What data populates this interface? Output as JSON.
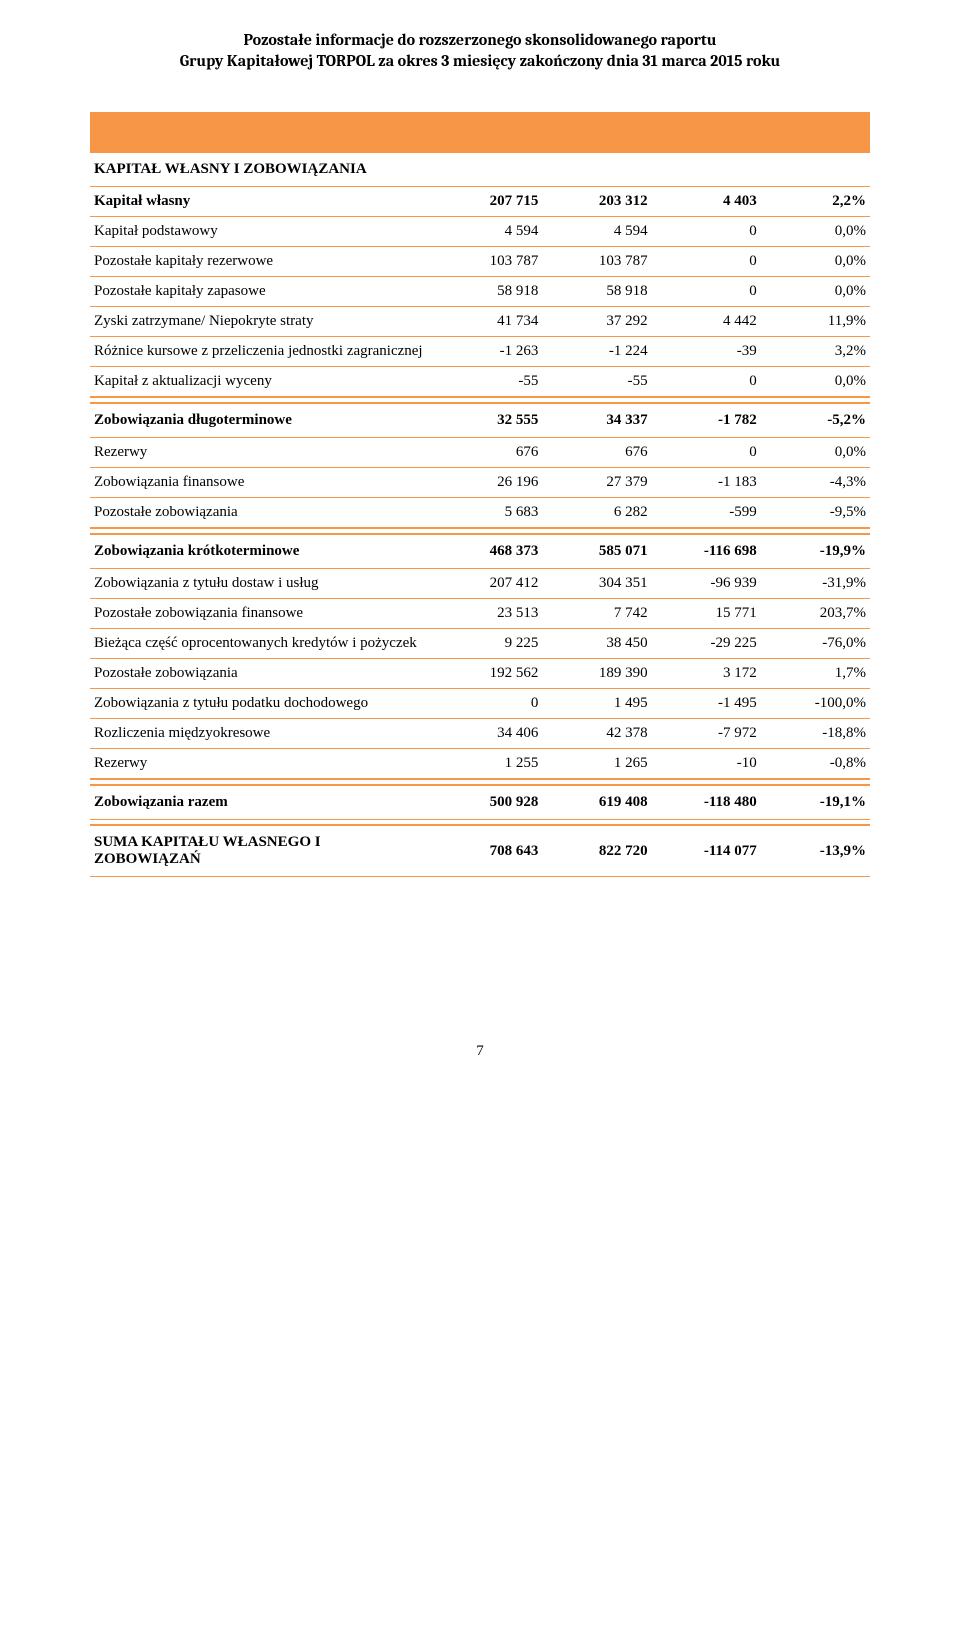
{
  "header": {
    "line1": "Pozostałe informacje do rozszerzonego skonsolidowanego raportu",
    "line2": "Grupy Kapitałowej TORPOL za okres 3 miesięcy zakończony dnia 31 marca 2015 roku"
  },
  "colors": {
    "accent": "#f79646",
    "text": "#000000",
    "bg": "#ffffff"
  },
  "sections": [
    {
      "title": {
        "label": "KAPITAŁ WŁASNY I ZOBOWIĄZANIA",
        "c1": "",
        "c2": "",
        "c3": "",
        "c4": ""
      },
      "rows": [
        {
          "label": "Kapitał własny",
          "c1": "207 715",
          "c2": "203 312",
          "c3": "4 403",
          "c4": "2,2%",
          "bold": true
        },
        {
          "label": "Kapitał podstawowy",
          "c1": "4 594",
          "c2": "4 594",
          "c3": "0",
          "c4": "0,0%"
        },
        {
          "label": "Pozostałe kapitały rezerwowe",
          "c1": "103 787",
          "c2": "103 787",
          "c3": "0",
          "c4": "0,0%"
        },
        {
          "label": "Pozostałe kapitały zapasowe",
          "c1": "58 918",
          "c2": "58 918",
          "c3": "0",
          "c4": "0,0%"
        },
        {
          "label": "Zyski zatrzymane/ Niepokryte straty",
          "c1": "41 734",
          "c2": "37 292",
          "c3": "4 442",
          "c4": "11,9%"
        },
        {
          "label": "Różnice kursowe z przeliczenia jednostki zagranicznej",
          "c1": "-1 263",
          "c2": "-1 224",
          "c3": "-39",
          "c4": "3,2%"
        },
        {
          "label": "Kapitał z aktualizacji wyceny",
          "c1": "-55",
          "c2": "-55",
          "c3": "0",
          "c4": "0,0%"
        }
      ]
    },
    {
      "title": {
        "label": "Zobowiązania długoterminowe",
        "c1": "32 555",
        "c2": "34 337",
        "c3": "-1 782",
        "c4": "-5,2%"
      },
      "rows": [
        {
          "label": "Rezerwy",
          "c1": "676",
          "c2": "676",
          "c3": "0",
          "c4": "0,0%"
        },
        {
          "label": "Zobowiązania finansowe",
          "c1": "26 196",
          "c2": "27 379",
          "c3": "-1 183",
          "c4": "-4,3%"
        },
        {
          "label": "Pozostałe zobowiązania",
          "c1": "5 683",
          "c2": "6 282",
          "c3": "-599",
          "c4": "-9,5%"
        }
      ]
    },
    {
      "title": {
        "label": "Zobowiązania krótkoterminowe",
        "c1": "468 373",
        "c2": "585 071",
        "c3": "-116 698",
        "c4": "-19,9%"
      },
      "rows": [
        {
          "label": "Zobowiązania z tytułu dostaw i usług",
          "c1": "207 412",
          "c2": "304 351",
          "c3": "-96 939",
          "c4": "-31,9%"
        },
        {
          "label": "Pozostałe zobowiązania finansowe",
          "c1": "23 513",
          "c2": "7 742",
          "c3": "15 771",
          "c4": "203,7%"
        },
        {
          "label": "Bieżąca część oprocentowanych kredytów i pożyczek",
          "c1": "9 225",
          "c2": "38 450",
          "c3": "-29 225",
          "c4": "-76,0%"
        },
        {
          "label": "Pozostałe zobowiązania",
          "c1": "192 562",
          "c2": "189 390",
          "c3": "3 172",
          "c4": "1,7%"
        },
        {
          "label": "Zobowiązania z tytułu podatku dochodowego",
          "c1": "0",
          "c2": "1 495",
          "c3": "-1 495",
          "c4": "-100,0%"
        },
        {
          "label": "Rozliczenia międzyokresowe",
          "c1": "34 406",
          "c2": "42 378",
          "c3": "-7 972",
          "c4": "-18,8%"
        },
        {
          "label": "Rezerwy",
          "c1": "1 255",
          "c2": "1 265",
          "c3": "-10",
          "c4": "-0,8%"
        }
      ]
    },
    {
      "title": {
        "label": "Zobowiązania razem",
        "c1": "500 928",
        "c2": "619 408",
        "c3": "-118 480",
        "c4": "-19,1%"
      },
      "rows": []
    },
    {
      "title": {
        "label": "SUMA KAPITAŁU WŁASNEGO I ZOBOWIĄZAŃ",
        "c1": "708 643",
        "c2": "822 720",
        "c3": "-114 077",
        "c4": "-13,9%"
      },
      "rows": []
    }
  ],
  "footer": {
    "page_number": "7"
  }
}
